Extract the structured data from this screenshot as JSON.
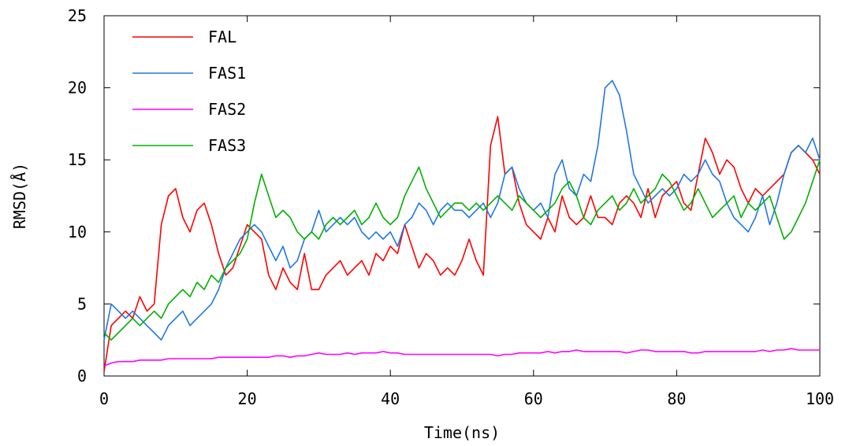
{
  "chart_data": {
    "type": "line",
    "xlabel": "Time(ns)",
    "ylabel": "RMSD(Å)",
    "xlim": [
      0,
      100
    ],
    "ylim": [
      0,
      25
    ],
    "xticks": [
      0,
      20,
      40,
      60,
      80,
      100
    ],
    "yticks": [
      0,
      5,
      10,
      15,
      20,
      25
    ],
    "grid": false,
    "legend_position": "top-left",
    "series": [
      {
        "name": "FAL",
        "color": "#ff0000",
        "x": [
          0,
          1,
          2,
          3,
          4,
          5,
          6,
          7,
          8,
          9,
          10,
          11,
          12,
          13,
          14,
          15,
          16,
          17,
          18,
          19,
          20,
          21,
          22,
          23,
          24,
          25,
          26,
          27,
          28,
          29,
          30,
          31,
          32,
          33,
          34,
          35,
          36,
          37,
          38,
          39,
          40,
          41,
          42,
          43,
          44,
          45,
          46,
          47,
          48,
          49,
          50,
          51,
          52,
          53,
          54,
          55,
          56,
          57,
          58,
          59,
          60,
          61,
          62,
          63,
          64,
          65,
          66,
          67,
          68,
          69,
          70,
          71,
          72,
          73,
          74,
          75,
          76,
          77,
          78,
          79,
          80,
          81,
          82,
          83,
          84,
          85,
          86,
          87,
          88,
          89,
          90,
          91,
          92,
          93,
          94,
          95,
          96,
          97,
          98,
          99,
          100
        ],
        "y": [
          0.3,
          3.5,
          4.0,
          4.5,
          4.0,
          5.5,
          4.5,
          5.0,
          10.5,
          12.5,
          13.0,
          11.0,
          10.0,
          11.5,
          12.0,
          10.5,
          8.5,
          7.0,
          7.5,
          9.0,
          10.5,
          10.0,
          9.5,
          7.0,
          6.0,
          7.5,
          6.5,
          6.0,
          8.5,
          6.0,
          6.0,
          7.0,
          7.5,
          8.0,
          7.0,
          7.5,
          8.0,
          7.0,
          8.5,
          8.0,
          9.0,
          8.5,
          10.5,
          9.0,
          7.5,
          8.5,
          8.0,
          7.0,
          7.5,
          7.0,
          8.0,
          9.5,
          8.0,
          7.0,
          16.0,
          18.0,
          14.0,
          14.5,
          12.0,
          10.5,
          10.0,
          9.5,
          11.0,
          10.0,
          12.5,
          11.0,
          10.5,
          11.0,
          12.5,
          11.0,
          11.0,
          10.5,
          12.0,
          12.5,
          12.0,
          11.0,
          13.0,
          11.0,
          12.5,
          13.0,
          13.5,
          12.0,
          11.5,
          14.0,
          16.5,
          15.5,
          14.0,
          15.0,
          14.5,
          13.0,
          12.0,
          13.0,
          12.5,
          13.0,
          13.5,
          14.0,
          15.5,
          16.0,
          15.5,
          15.0,
          14.0
        ]
      },
      {
        "name": "FAS1",
        "color": "#1f77e6",
        "x": [
          0,
          1,
          2,
          3,
          4,
          5,
          6,
          7,
          8,
          9,
          10,
          11,
          12,
          13,
          14,
          15,
          16,
          17,
          18,
          19,
          20,
          21,
          22,
          23,
          24,
          25,
          26,
          27,
          28,
          29,
          30,
          31,
          32,
          33,
          34,
          35,
          36,
          37,
          38,
          39,
          40,
          41,
          42,
          43,
          44,
          45,
          46,
          47,
          48,
          49,
          50,
          51,
          52,
          53,
          54,
          55,
          56,
          57,
          58,
          59,
          60,
          61,
          62,
          63,
          64,
          65,
          66,
          67,
          68,
          69,
          70,
          71,
          72,
          73,
          74,
          75,
          76,
          77,
          78,
          79,
          80,
          81,
          82,
          83,
          84,
          85,
          86,
          87,
          88,
          89,
          90,
          91,
          92,
          93,
          94,
          95,
          96,
          97,
          98,
          99,
          100
        ],
        "y": [
          2.5,
          5.0,
          4.5,
          4.0,
          4.5,
          4.0,
          3.5,
          3.0,
          2.5,
          3.5,
          4.0,
          4.5,
          3.5,
          4.0,
          4.5,
          5.0,
          6.0,
          7.5,
          8.5,
          9.5,
          10.0,
          10.5,
          10.0,
          9.0,
          8.0,
          9.0,
          7.5,
          8.0,
          9.5,
          10.0,
          11.5,
          10.0,
          10.5,
          11.0,
          10.5,
          11.0,
          10.0,
          9.5,
          10.0,
          9.5,
          10.0,
          9.0,
          10.5,
          11.0,
          12.0,
          11.5,
          10.5,
          11.5,
          12.0,
          11.5,
          11.5,
          11.0,
          11.5,
          12.0,
          11.0,
          12.0,
          14.0,
          14.5,
          13.0,
          12.0,
          11.5,
          12.0,
          11.0,
          14.0,
          15.0,
          13.0,
          12.5,
          14.0,
          13.5,
          16.0,
          20.0,
          20.5,
          19.5,
          17.0,
          14.0,
          13.0,
          12.0,
          12.5,
          13.0,
          12.5,
          13.0,
          14.0,
          13.5,
          14.0,
          15.0,
          14.0,
          13.5,
          12.0,
          11.0,
          10.5,
          10.0,
          11.0,
          12.5,
          10.5,
          12.0,
          14.0,
          15.5,
          16.0,
          15.5,
          16.5,
          15.0
        ]
      },
      {
        "name": "FAS2",
        "color": "#ff00ff",
        "x": [
          0,
          1,
          2,
          3,
          4,
          5,
          6,
          7,
          8,
          9,
          10,
          11,
          12,
          13,
          14,
          15,
          16,
          17,
          18,
          19,
          20,
          21,
          22,
          23,
          24,
          25,
          26,
          27,
          28,
          29,
          30,
          31,
          32,
          33,
          34,
          35,
          36,
          37,
          38,
          39,
          40,
          41,
          42,
          43,
          44,
          45,
          46,
          47,
          48,
          49,
          50,
          51,
          52,
          53,
          54,
          55,
          56,
          57,
          58,
          59,
          60,
          61,
          62,
          63,
          64,
          65,
          66,
          67,
          68,
          69,
          70,
          71,
          72,
          73,
          74,
          75,
          76,
          77,
          78,
          79,
          80,
          81,
          82,
          83,
          84,
          85,
          86,
          87,
          88,
          89,
          90,
          91,
          92,
          93,
          94,
          95,
          96,
          97,
          98,
          99,
          100
        ],
        "y": [
          0.7,
          0.9,
          1.0,
          1.0,
          1.0,
          1.1,
          1.1,
          1.1,
          1.1,
          1.2,
          1.2,
          1.2,
          1.2,
          1.2,
          1.2,
          1.2,
          1.3,
          1.3,
          1.3,
          1.3,
          1.3,
          1.3,
          1.3,
          1.3,
          1.4,
          1.4,
          1.3,
          1.4,
          1.4,
          1.5,
          1.6,
          1.5,
          1.5,
          1.5,
          1.6,
          1.5,
          1.6,
          1.6,
          1.6,
          1.7,
          1.6,
          1.6,
          1.5,
          1.5,
          1.5,
          1.5,
          1.5,
          1.5,
          1.5,
          1.5,
          1.5,
          1.5,
          1.5,
          1.5,
          1.5,
          1.4,
          1.5,
          1.5,
          1.6,
          1.6,
          1.6,
          1.6,
          1.7,
          1.6,
          1.7,
          1.7,
          1.8,
          1.7,
          1.7,
          1.7,
          1.7,
          1.7,
          1.7,
          1.6,
          1.7,
          1.8,
          1.8,
          1.7,
          1.7,
          1.7,
          1.7,
          1.7,
          1.6,
          1.6,
          1.7,
          1.7,
          1.7,
          1.7,
          1.7,
          1.7,
          1.7,
          1.7,
          1.8,
          1.7,
          1.8,
          1.8,
          1.9,
          1.8,
          1.8,
          1.8,
          1.8
        ]
      },
      {
        "name": "FAS3",
        "color": "#00b000",
        "x": [
          0,
          1,
          2,
          3,
          4,
          5,
          6,
          7,
          8,
          9,
          10,
          11,
          12,
          13,
          14,
          15,
          16,
          17,
          18,
          19,
          20,
          21,
          22,
          23,
          24,
          25,
          26,
          27,
          28,
          29,
          30,
          31,
          32,
          33,
          34,
          35,
          36,
          37,
          38,
          39,
          40,
          41,
          42,
          43,
          44,
          45,
          46,
          47,
          48,
          49,
          50,
          51,
          52,
          53,
          54,
          55,
          56,
          57,
          58,
          59,
          60,
          61,
          62,
          63,
          64,
          65,
          66,
          67,
          68,
          69,
          70,
          71,
          72,
          73,
          74,
          75,
          76,
          77,
          78,
          79,
          80,
          81,
          82,
          83,
          84,
          85,
          86,
          87,
          88,
          89,
          90,
          91,
          92,
          93,
          94,
          95,
          96,
          97,
          98,
          99,
          100
        ],
        "y": [
          3.0,
          2.5,
          3.0,
          3.5,
          4.0,
          3.5,
          4.0,
          4.5,
          4.0,
          5.0,
          5.5,
          6.0,
          5.5,
          6.5,
          6.0,
          7.0,
          6.5,
          7.5,
          8.0,
          8.5,
          9.5,
          12.0,
          14.0,
          12.5,
          11.0,
          11.5,
          11.0,
          10.0,
          9.5,
          10.0,
          9.5,
          10.5,
          11.0,
          10.5,
          11.0,
          11.5,
          10.5,
          11.0,
          12.0,
          11.0,
          10.5,
          11.0,
          12.5,
          13.5,
          14.5,
          13.0,
          12.0,
          11.0,
          11.5,
          12.0,
          12.0,
          11.5,
          12.0,
          11.5,
          12.0,
          12.5,
          12.0,
          11.5,
          12.5,
          12.0,
          11.5,
          11.0,
          11.5,
          12.0,
          13.0,
          13.5,
          12.5,
          11.0,
          10.5,
          11.5,
          12.0,
          12.5,
          11.5,
          12.0,
          13.0,
          12.0,
          12.5,
          13.0,
          14.0,
          13.5,
          12.5,
          11.5,
          12.0,
          13.0,
          12.0,
          11.0,
          11.5,
          12.0,
          12.5,
          11.0,
          12.0,
          11.5,
          12.0,
          12.5,
          11.0,
          9.5,
          10.0,
          11.0,
          12.0,
          13.5,
          15.0
        ]
      }
    ]
  }
}
